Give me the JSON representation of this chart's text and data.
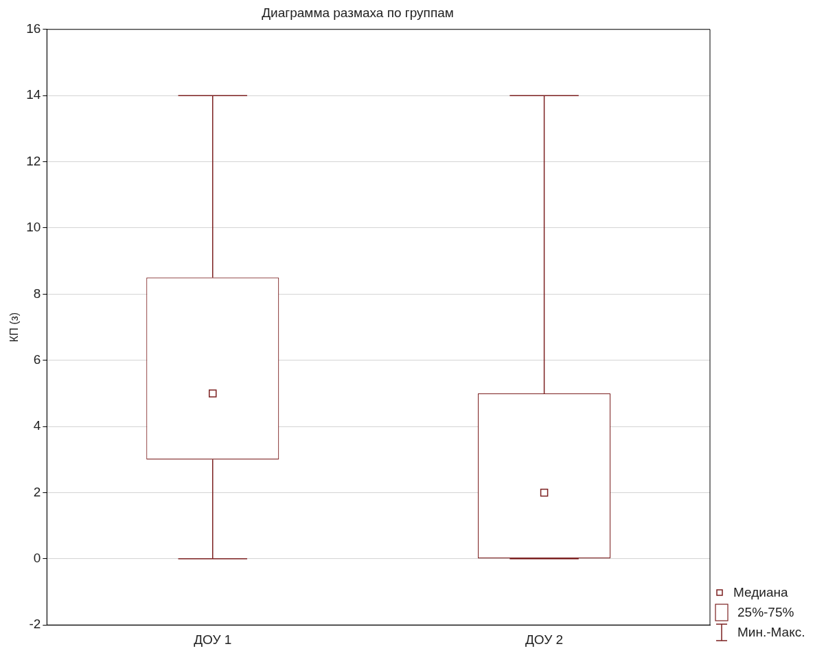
{
  "chart_data": {
    "type": "box",
    "title": "Диаграмма размаха по группам",
    "ylabel": "КП (з)",
    "categories": [
      "ДОУ 1",
      "ДОУ 2"
    ],
    "series": [
      {
        "color": "#7b1f1f",
        "boxes": [
          {
            "low": 0,
            "q1": 3,
            "median": 5,
            "q3": 8.5,
            "high": 14
          },
          {
            "low": 0,
            "q1": 0,
            "median": 2,
            "q3": 5,
            "high": 14
          }
        ]
      }
    ],
    "ylim": [
      -2,
      16
    ],
    "yticks": [
      -2,
      0,
      2,
      4,
      6,
      8,
      10,
      12,
      14,
      16
    ],
    "grid": "y",
    "annotations": [
      "Медиана",
      "25%-75%",
      "Мин.-Макс."
    ],
    "marker": "square"
  }
}
